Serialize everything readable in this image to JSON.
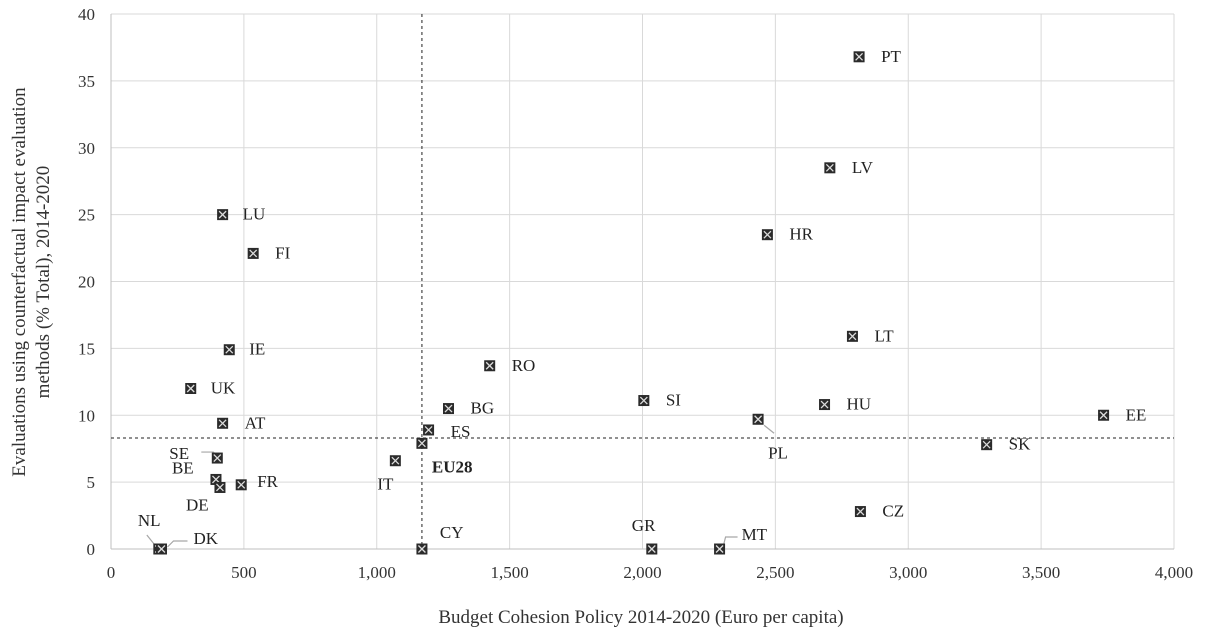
{
  "chart_data": {
    "type": "scatter",
    "title": "",
    "xlabel": "Budget Cohesion Policy 2014-2020 (Euro per capita)",
    "ylabel_line1": "Evaluations using counterfactual impact evaluation",
    "ylabel_line2": "methods (% Total), 2014-2020",
    "xlim": [
      0,
      4000
    ],
    "ylim": [
      0,
      40
    ],
    "x_ticks": [
      0,
      500,
      1000,
      1500,
      2000,
      2500,
      3000,
      3500,
      4000
    ],
    "x_tick_labels": [
      "0",
      "500",
      "1,000",
      "1,500",
      "2,000",
      "2,500",
      "3,000",
      "3,500",
      "4,000"
    ],
    "y_ticks": [
      0,
      5,
      10,
      15,
      20,
      25,
      30,
      35,
      40
    ],
    "y_tick_labels": [
      "0",
      "5",
      "10",
      "15",
      "20",
      "25",
      "30",
      "35",
      "40"
    ],
    "grid": true,
    "reference_lines": {
      "x": 1170,
      "y": 8.3
    },
    "marker_color": "#2b2b2b",
    "points": [
      {
        "label": "PT",
        "x": 2815,
        "y": 36.8
      },
      {
        "label": "LV",
        "x": 2705,
        "y": 28.5
      },
      {
        "label": "HR",
        "x": 2470,
        "y": 23.5
      },
      {
        "label": "LU",
        "x": 420,
        "y": 25.0
      },
      {
        "label": "FI",
        "x": 535,
        "y": 22.1
      },
      {
        "label": "LT",
        "x": 2790,
        "y": 15.9
      },
      {
        "label": "IE",
        "x": 445,
        "y": 14.9
      },
      {
        "label": "RO",
        "x": 1425,
        "y": 13.7
      },
      {
        "label": "UK",
        "x": 300,
        "y": 12.0
      },
      {
        "label": "SI",
        "x": 2005,
        "y": 11.1
      },
      {
        "label": "HU",
        "x": 2685,
        "y": 10.8
      },
      {
        "label": "BG",
        "x": 1270,
        "y": 10.5
      },
      {
        "label": "EE",
        "x": 3735,
        "y": 10.0
      },
      {
        "label": "PL",
        "x": 2435,
        "y": 9.7
      },
      {
        "label": "AT",
        "x": 420,
        "y": 9.4
      },
      {
        "label": "ES",
        "x": 1195,
        "y": 8.9
      },
      {
        "label": "EU28",
        "x": 1170,
        "y": 7.9
      },
      {
        "label": "SK",
        "x": 3295,
        "y": 7.8
      },
      {
        "label": "SE",
        "x": 400,
        "y": 6.8
      },
      {
        "label": "IT",
        "x": 1070,
        "y": 6.6
      },
      {
        "label": "BE",
        "x": 395,
        "y": 5.2
      },
      {
        "label": "FR",
        "x": 490,
        "y": 4.8
      },
      {
        "label": "DE",
        "x": 410,
        "y": 4.6
      },
      {
        "label": "CZ",
        "x": 2820,
        "y": 2.8
      },
      {
        "label": "NL",
        "x": 180,
        "y": 0.0
      },
      {
        "label": "DK",
        "x": 190,
        "y": 0.0
      },
      {
        "label": "CY",
        "x": 1170,
        "y": 0.0
      },
      {
        "label": "GR",
        "x": 2035,
        "y": 0.0
      },
      {
        "label": "MT",
        "x": 2290,
        "y": 0.0
      }
    ]
  }
}
